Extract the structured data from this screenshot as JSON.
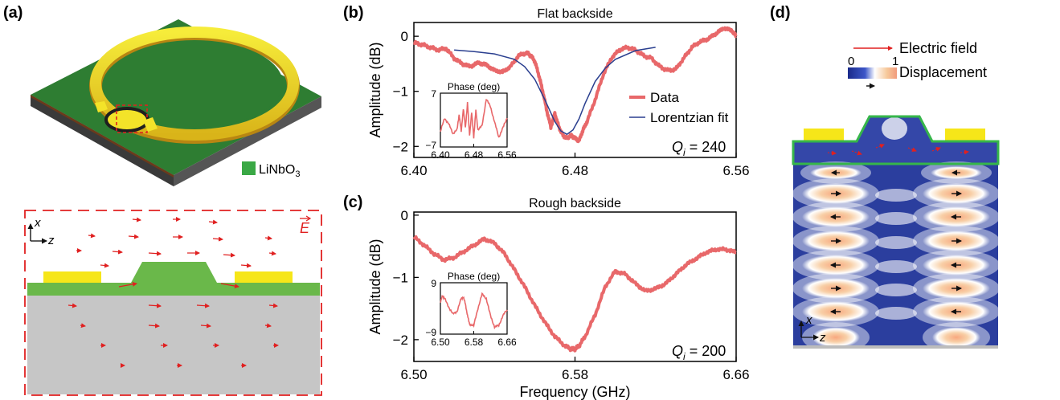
{
  "panels": {
    "a": {
      "label": "(a)",
      "material_legend": "LiNbO",
      "material_legend_sub": "3",
      "axis_x": "x",
      "axis_z": "z",
      "field_label": "E"
    },
    "b": {
      "label": "(b)"
    },
    "c": {
      "label": "(c)"
    },
    "d": {
      "label": "(d)",
      "legend_field": "Electric field",
      "legend_displacement": "Displacement",
      "colorbar_min": "0",
      "colorbar_max": "1",
      "axis_x": "x",
      "axis_z": "z"
    }
  },
  "colors": {
    "data": "#e8686a",
    "fit": "#2a3f8f",
    "linbo3": "#3aa845",
    "electrode": "#f6e619",
    "substrate": "#c6c6c6",
    "field_arrow": "#e02020",
    "outline": "#36b64a"
  },
  "chart_data": [
    {
      "id": "b",
      "type": "line",
      "title": "Flat backside",
      "xlabel": "",
      "ylabel": "Amplitude (dB)",
      "xlim": [
        6.4,
        6.56
      ],
      "ylim": [
        -2.2,
        0.25
      ],
      "xticks": [
        "6.40",
        "6.48",
        "6.56"
      ],
      "xtick_values": [
        6.4,
        6.48,
        6.56
      ],
      "yticks": [
        "0",
        "−1",
        "−2"
      ],
      "ytick_values": [
        0,
        -1,
        -2
      ],
      "annotation": "Q",
      "annotation_sub": "i",
      "annotation_value": " = 240",
      "legend": "right",
      "series": [
        {
          "name": "Data",
          "x": [
            6.4,
            6.404,
            6.408,
            6.412,
            6.416,
            6.42,
            6.424,
            6.428,
            6.432,
            6.436,
            6.44,
            6.444,
            6.448,
            6.452,
            6.456,
            6.458,
            6.46,
            6.462,
            6.464,
            6.466,
            6.468,
            6.47,
            6.472,
            6.474,
            6.476,
            6.478,
            6.48,
            6.482,
            6.484,
            6.486,
            6.49,
            6.494,
            6.498,
            6.502,
            6.506,
            6.51,
            6.514,
            6.518,
            6.522,
            6.526,
            6.53,
            6.534,
            6.538,
            6.542,
            6.546,
            6.55,
            6.554,
            6.558,
            6.56
          ],
          "values": [
            -0.12,
            -0.15,
            -0.2,
            -0.25,
            -0.22,
            -0.4,
            -0.5,
            -0.55,
            -0.48,
            -0.52,
            -0.62,
            -0.65,
            -0.55,
            -0.35,
            -0.3,
            -0.35,
            -0.45,
            -0.7,
            -1.0,
            -1.35,
            -1.65,
            -1.4,
            -1.65,
            -1.8,
            -1.85,
            -1.8,
            -1.85,
            -1.9,
            -1.7,
            -1.55,
            -1.15,
            -0.7,
            -0.4,
            -0.25,
            -0.2,
            -0.25,
            -0.35,
            -0.4,
            -0.55,
            -0.62,
            -0.6,
            -0.4,
            -0.2,
            -0.1,
            -0.05,
            0.05,
            0.15,
            0.1,
            0.0
          ]
        },
        {
          "name": "Lorentzian fit",
          "x": [
            6.42,
            6.43,
            6.44,
            6.45,
            6.455,
            6.46,
            6.465,
            6.47,
            6.473,
            6.476,
            6.479,
            6.482,
            6.485,
            6.49,
            6.495,
            6.5,
            6.51,
            6.52
          ],
          "values": [
            -0.25,
            -0.28,
            -0.32,
            -0.42,
            -0.55,
            -0.78,
            -1.15,
            -1.55,
            -1.72,
            -1.78,
            -1.7,
            -1.5,
            -1.22,
            -0.82,
            -0.58,
            -0.42,
            -0.26,
            -0.2
          ]
        }
      ],
      "inset": {
        "title": "Phase (deg)",
        "xlim": [
          6.4,
          6.56
        ],
        "ylim": [
          -7,
          7
        ],
        "xticks": [
          "6.40",
          "6.48",
          "6.56"
        ],
        "yticks": [
          "7",
          "−7"
        ],
        "x": [
          6.4,
          6.41,
          6.42,
          6.43,
          6.44,
          6.445,
          6.45,
          6.455,
          6.46,
          6.465,
          6.47,
          6.475,
          6.48,
          6.485,
          6.49,
          6.5,
          6.51,
          6.52,
          6.53,
          6.54,
          6.55,
          6.56
        ],
        "values": [
          -3.0,
          0.5,
          -1.0,
          -3.5,
          -2.5,
          1.5,
          -3.0,
          3.0,
          -2.0,
          4.5,
          -4.0,
          2.0,
          -4.5,
          2.5,
          -2.5,
          -1.5,
          5.5,
          3.5,
          -0.5,
          -4.5,
          -2.0,
          0.5
        ]
      }
    },
    {
      "id": "c",
      "type": "line",
      "title": "Rough backside",
      "xlabel": "Frequency (GHz)",
      "ylabel": "Amplitude (dB)",
      "xlim": [
        6.5,
        6.66
      ],
      "ylim": [
        -2.35,
        0.05
      ],
      "xticks": [
        "6.50",
        "6.58",
        "6.66"
      ],
      "xtick_values": [
        6.5,
        6.58,
        6.66
      ],
      "yticks": [
        "0",
        "−1",
        "−2"
      ],
      "ytick_values": [
        0,
        -1,
        -2
      ],
      "annotation": "Q",
      "annotation_sub": "i",
      "annotation_value": " = 200",
      "series": [
        {
          "name": "Data",
          "x": [
            6.5,
            6.505,
            6.51,
            6.515,
            6.52,
            6.525,
            6.53,
            6.535,
            6.54,
            6.545,
            6.55,
            6.555,
            6.56,
            6.565,
            6.57,
            6.575,
            6.578,
            6.58,
            6.582,
            6.585,
            6.59,
            6.595,
            6.6,
            6.605,
            6.61,
            6.615,
            6.62,
            6.625,
            6.63,
            6.635,
            6.64,
            6.645,
            6.65,
            6.655,
            6.66
          ],
          "values": [
            -0.35,
            -0.48,
            -0.62,
            -0.72,
            -0.68,
            -0.58,
            -0.48,
            -0.38,
            -0.45,
            -0.62,
            -0.88,
            -1.15,
            -1.45,
            -1.72,
            -1.95,
            -2.1,
            -2.15,
            -2.15,
            -2.1,
            -1.95,
            -1.6,
            -1.15,
            -0.9,
            -0.95,
            -1.1,
            -1.22,
            -1.18,
            -1.1,
            -0.95,
            -0.8,
            -0.7,
            -0.6,
            -0.55,
            -0.55,
            -0.6
          ]
        }
      ],
      "inset": {
        "title": "Phase (deg)",
        "xlim": [
          6.5,
          6.66
        ],
        "ylim": [
          -9,
          9
        ],
        "xticks": [
          "6.50",
          "6.58",
          "6.66"
        ],
        "yticks": [
          "9",
          "−9"
        ],
        "x": [
          6.5,
          6.505,
          6.51,
          6.52,
          6.53,
          6.54,
          6.55,
          6.555,
          6.56,
          6.565,
          6.57,
          6.58,
          6.59,
          6.6,
          6.61,
          6.62,
          6.63,
          6.64,
          6.65,
          6.66
        ],
        "values": [
          2.0,
          4.5,
          3.5,
          0.5,
          -2.0,
          -1.0,
          3.5,
          4.0,
          1.5,
          -2.5,
          -5.5,
          -6.0,
          0.0,
          5.0,
          3.5,
          -2.5,
          -6.5,
          -6.0,
          -2.5,
          -0.5
        ]
      }
    }
  ]
}
